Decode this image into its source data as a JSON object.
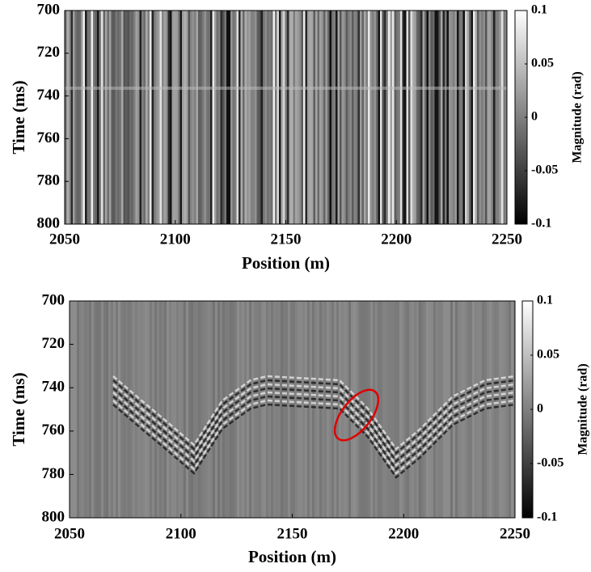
{
  "chart_data": [
    {
      "type": "heatmap",
      "xlabel": "Position (m)",
      "ylabel": "Time (ms)",
      "colorbar_label": "Magnitude (rad)",
      "xlim": [
        2050,
        2250
      ],
      "xticks": [
        2050,
        2100,
        2150,
        2200,
        2250
      ],
      "ylim": [
        700,
        800
      ],
      "yticks": [
        700,
        720,
        740,
        760,
        780,
        800
      ],
      "y_reversed": true,
      "clim": [
        -0.1,
        0.1
      ],
      "cticks": [
        0.1,
        0.05,
        0,
        -0.05,
        -0.1
      ],
      "colormap": "gray"
    },
    {
      "type": "heatmap",
      "xlabel": "Position (m)",
      "ylabel": "Time (ms)",
      "colorbar_label": "Magnitude (rad)",
      "xlim": [
        2050,
        2250
      ],
      "xticks": [
        2050,
        2100,
        2150,
        2200,
        2250
      ],
      "ylim": [
        700,
        800
      ],
      "yticks": [
        700,
        720,
        740,
        760,
        780,
        800
      ],
      "y_reversed": true,
      "clim": [
        -0.1,
        0.1
      ],
      "cticks": [
        0.1,
        0.05,
        0,
        -0.05,
        -0.1
      ],
      "colormap": "gray"
    }
  ]
}
